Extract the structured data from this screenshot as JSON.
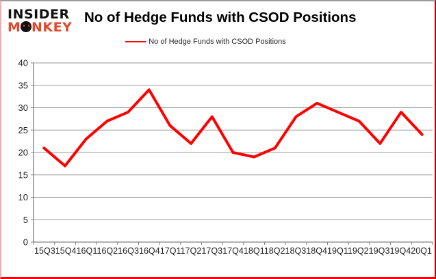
{
  "logo": {
    "top": "INSIDER",
    "bottom_pre": "M",
    "bottom_post": "NKEY"
  },
  "title": "No of Hedge Funds with CSOD Positions",
  "legend": {
    "label": "No of Hedge Funds with CSOD Positions"
  },
  "colors": {
    "series_line": "#fe0000",
    "logo_black": "#111111",
    "logo_red": "#e2492f",
    "grid": "#9a9a9a",
    "axis": "#808080",
    "tick_label": "#1f1f1f",
    "frame_top": "#9c9c9c",
    "frame_left": "#f2abab",
    "frame_right": "#b40000",
    "frame_bottom": "#fe0000",
    "background": "#ffffff"
  },
  "chart_data": {
    "type": "line",
    "title": "No of Hedge Funds with CSOD Positions",
    "categories": [
      "15Q3",
      "15Q4",
      "16Q1",
      "16Q2",
      "16Q3",
      "16Q4",
      "17Q1",
      "17Q2",
      "17Q3",
      "17Q4",
      "18Q1",
      "18Q2",
      "18Q3",
      "18Q4",
      "19Q1",
      "19Q2",
      "19Q3",
      "19Q4",
      "20Q1"
    ],
    "series": [
      {
        "name": "No of Hedge Funds with CSOD Positions",
        "color": "#fe0000",
        "values": [
          21,
          17,
          23,
          27,
          29,
          34,
          26,
          22,
          28,
          20,
          19,
          21,
          28,
          31,
          29,
          27,
          22,
          29,
          24
        ]
      }
    ],
    "xlabel": "",
    "ylabel": "",
    "ylim": [
      0,
      40
    ],
    "ytick_step": 5,
    "grid": "horizontal-only",
    "legend_position": "top-center"
  }
}
